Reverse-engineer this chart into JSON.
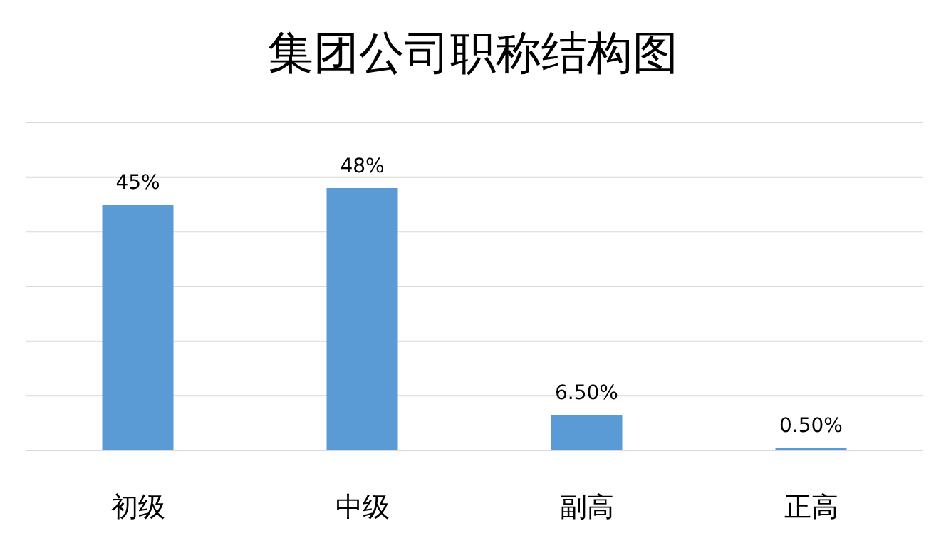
{
  "chart_data": {
    "type": "bar",
    "title": "集团公司职称结构图",
    "categories": [
      "初级",
      "中级",
      "副高",
      "正高"
    ],
    "values": [
      45,
      48,
      6.5,
      0.5
    ],
    "value_labels": [
      "45%",
      "48%",
      "6.50%",
      "0.50%"
    ],
    "color": "#5b9bd5",
    "ylim": [
      0,
      60
    ],
    "yticks": [
      {
        "value": 0,
        "label": null
      },
      {
        "value": 10,
        "label": null
      },
      {
        "value": 20,
        "label": null
      },
      {
        "value": 30,
        "label": null
      },
      {
        "value": 40,
        "label": null
      },
      {
        "value": 50,
        "label": null
      },
      {
        "value": 60,
        "label": null
      }
    ],
    "grid": "y"
  }
}
